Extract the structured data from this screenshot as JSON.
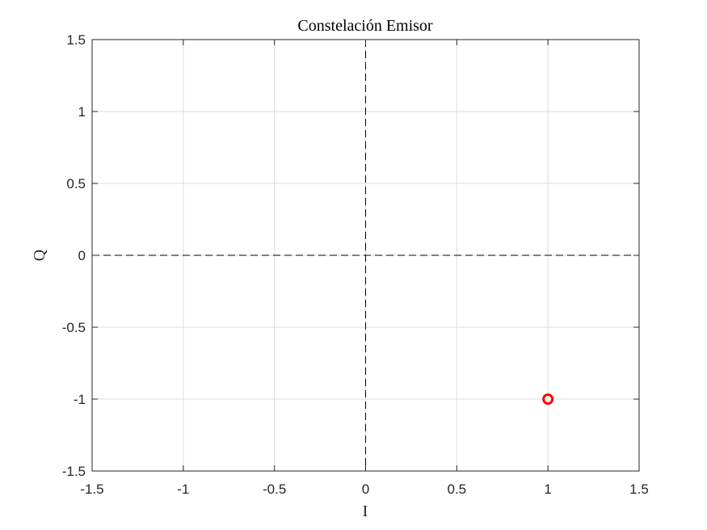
{
  "chart_data": {
    "type": "scatter",
    "title": "Constelación Emisor",
    "xlabel": "I",
    "ylabel": "Q",
    "xlim": [
      -1.5,
      1.5
    ],
    "ylim": [
      -1.5,
      1.5
    ],
    "xticks": [
      -1.5,
      -1,
      -0.5,
      0,
      0.5,
      1,
      1.5
    ],
    "yticks": [
      -1.5,
      -1,
      -0.5,
      0,
      0.5,
      1,
      1.5
    ],
    "xtick_labels": [
      "-1.5",
      "-1",
      "-0.5",
      "0",
      "0.5",
      "1",
      "1.5"
    ],
    "ytick_labels": [
      "-1.5",
      "-1",
      "-0.5",
      "0",
      "0.5",
      "1",
      "1.5"
    ],
    "grid": true,
    "reference_lines": [
      {
        "orientation": "horizontal",
        "value": 0,
        "style": "dashed",
        "color": "#000000"
      },
      {
        "orientation": "vertical",
        "value": 0,
        "style": "dashed",
        "color": "#000000"
      }
    ],
    "series": [
      {
        "marker": "circle-open",
        "color": "#ff0000",
        "points": [
          {
            "x": 1,
            "y": -1
          }
        ]
      }
    ]
  }
}
